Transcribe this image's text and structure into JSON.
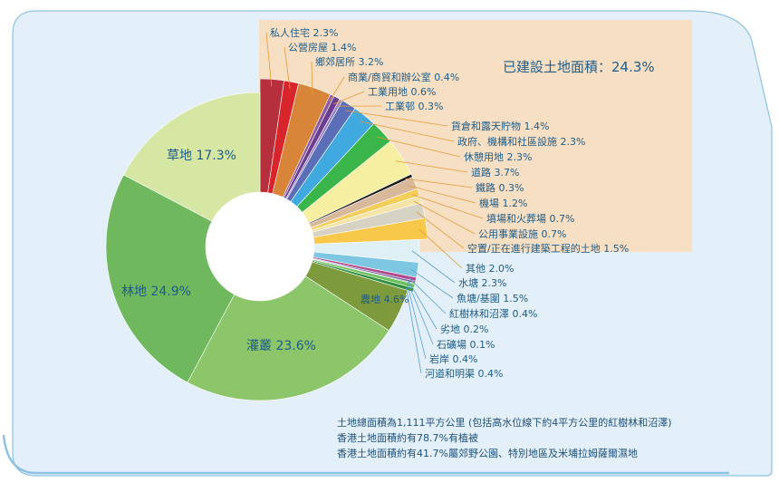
{
  "colors": {
    "background_card": "#e3f0f9",
    "card_border": "#8fc2e3",
    "built_up_box": "#f7dfc3",
    "label_text": "#1f5c87",
    "leader_line": "#e59a3a",
    "leader_line_blue": "#5aa0cf"
  },
  "built_up_summary": "已建設土地面積：24.3%",
  "notes": [
    "土地總面積為1,111平方公里 (包括高水位線下約4平方公里的紅樹林和沼澤)",
    "香港土地面積約有78.7%有植被",
    "香港土地面積約有41.7%屬郊野公園、特別地區及米埔拉姆薩爾濕地"
  ],
  "chart_data": {
    "type": "pie",
    "donut": true,
    "slices": [
      {
        "label": "私人住宅",
        "display": "私人住宅 2.3%",
        "value": 2.3,
        "color": "#b5303c",
        "group": "built"
      },
      {
        "label": "公營房屋",
        "display": "公營房屋 1.4%",
        "value": 1.4,
        "color": "#d8252c",
        "group": "built"
      },
      {
        "label": "鄉郊居所",
        "display": "鄉郊居所 3.2%",
        "value": 3.2,
        "color": "#d8853a",
        "group": "built"
      },
      {
        "label": "商業/商貿和辦公室",
        "display": "商業/商貿和辦公室 0.4%",
        "value": 0.4,
        "color": "#8b5a9f",
        "group": "built"
      },
      {
        "label": "工業用地",
        "display": "工業用地 0.6%",
        "value": 0.6,
        "color": "#6a3d8f",
        "group": "built"
      },
      {
        "label": "工業邨",
        "display": "工業邨 0.3%",
        "value": 0.3,
        "color": "#9b80c0",
        "group": "built"
      },
      {
        "label": "貨倉和露天貯物",
        "display": "貨倉和露天貯物 1.4%",
        "value": 1.4,
        "color": "#5b6fb8",
        "group": "built"
      },
      {
        "label": "政府、機構和社區設施",
        "display": "政府、機構和社區設施 2.3%",
        "value": 2.3,
        "color": "#3fa9e0",
        "group": "built"
      },
      {
        "label": "休憩用地",
        "display": "休憩用地 2.3%",
        "value": 2.3,
        "color": "#3ab54a",
        "group": "built"
      },
      {
        "label": "道路",
        "display": "道路 3.7%",
        "value": 3.7,
        "color": "#f6efa2",
        "group": "built"
      },
      {
        "label": "鐵路",
        "display": "鐵路 0.3%",
        "value": 0.3,
        "color": "#1a1a1a",
        "group": "built"
      },
      {
        "label": "機場",
        "display": "機場 1.2%",
        "value": 1.2,
        "color": "#d9b99b",
        "group": "built"
      },
      {
        "label": "墳場和火葬場",
        "display": "墳場和火葬場 0.7%",
        "value": 0.7,
        "color": "#f3ce5a",
        "group": "built"
      },
      {
        "label": "公用事業設施",
        "display": "公用事業設施 0.7%",
        "value": 0.7,
        "color": "#f5e4a8",
        "group": "built"
      },
      {
        "label": "空置/正在進行建築工程的土地",
        "display": "空置/正在進行建築工程的土地 1.5%",
        "value": 1.5,
        "color": "#d6d2c4",
        "group": "built"
      },
      {
        "label": "其他",
        "display": "其他 2.0%",
        "value": 2.0,
        "color": "#f8c84a",
        "group": "built"
      },
      {
        "label": "水塘",
        "display": "水塘 2.3%",
        "value": 2.3,
        "color": "#dff0f7",
        "group": "blue"
      },
      {
        "label": "魚塘/基圍",
        "display": "魚塘/基圍 1.5%",
        "value": 1.5,
        "color": "#7dc7e3",
        "group": "blue"
      },
      {
        "label": "紅樹林和沼澤",
        "display": "紅樹林和沼澤 0.4%",
        "value": 0.4,
        "color": "#b04a8c",
        "group": "blue"
      },
      {
        "label": "劣地",
        "display": "劣地 0.2%",
        "value": 0.2,
        "color": "#6b5a9e",
        "group": "blue"
      },
      {
        "label": "石礦場",
        "display": "石礦場 0.1%",
        "value": 0.1,
        "color": "#3a8f3e",
        "group": "blue"
      },
      {
        "label": "岩岸",
        "display": "岩岸 0.4%",
        "value": 0.4,
        "color": "#6bbf5a",
        "group": "blue"
      },
      {
        "label": "河道和明渠",
        "display": "河道和明渠 0.4%",
        "value": 0.4,
        "color": "#2f8f3f",
        "group": "blue"
      },
      {
        "label": "農地",
        "display": "農地 4.6%",
        "value": 4.6,
        "color": "#7d9a3c",
        "group": "inner"
      },
      {
        "label": "灌叢",
        "display": "灌叢 23.6%",
        "value": 23.6,
        "color": "#8cc56a",
        "group": "inner"
      },
      {
        "label": "林地",
        "display": "林地 24.9%",
        "value": 24.9,
        "color": "#6fb85e",
        "group": "inner"
      },
      {
        "label": "草地",
        "display": "草地 17.3%",
        "value": 17.3,
        "color": "#d6e6a3",
        "group": "inner"
      }
    ]
  }
}
